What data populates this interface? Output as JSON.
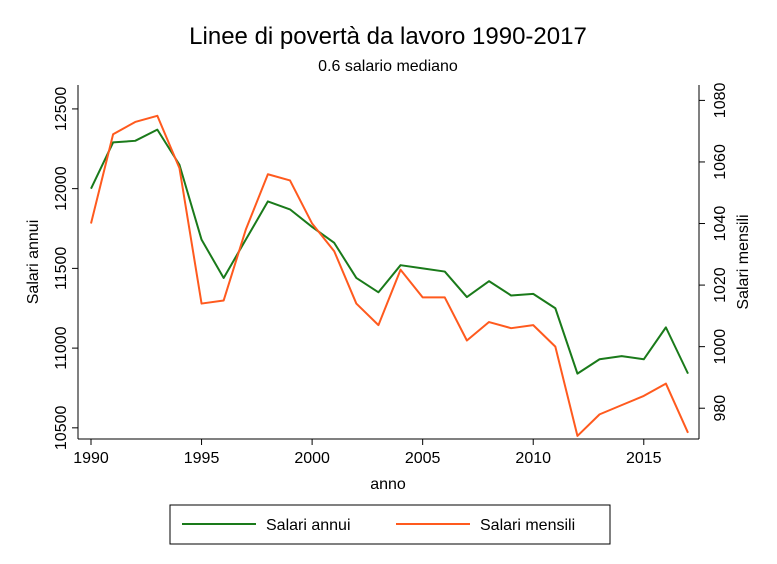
{
  "chart_data": {
    "type": "line",
    "title": "Linee di povertà da lavoro 1990-2017",
    "subtitle": "0.6 salario mediano",
    "xlabel": "anno",
    "ylabel_left": "Salari annui",
    "ylabel_right": "Salari mensili",
    "x": [
      1990,
      1991,
      1992,
      1993,
      1994,
      1995,
      1996,
      1997,
      1998,
      1999,
      2000,
      2001,
      2002,
      2003,
      2004,
      2005,
      2006,
      2007,
      2008,
      2009,
      2010,
      2011,
      2012,
      2013,
      2014,
      2015,
      2016,
      2017
    ],
    "x_ticks": [
      "1990",
      "1995",
      "2000",
      "2005",
      "2010",
      "2015"
    ],
    "xlim": [
      1990,
      2017
    ],
    "y_left_ticks": [
      "10500",
      "11000",
      "11500",
      "12000",
      "12500"
    ],
    "ylim_left": [
      10430,
      12650
    ],
    "y_right_ticks": [
      "980",
      "1000",
      "1020",
      "1040",
      "1060",
      "1080"
    ],
    "ylim_right": [
      970,
      1085
    ],
    "grid": false,
    "legend_position": "bottom",
    "series": [
      {
        "name": "Salari annui",
        "axis": "left",
        "color": "#1a7a1a",
        "values": [
          12000,
          12290,
          12300,
          12370,
          12150,
          11680,
          11440,
          11680,
          11920,
          11870,
          11760,
          11660,
          11440,
          11350,
          11520,
          11500,
          11480,
          11320,
          11420,
          11330,
          11340,
          11250,
          10840,
          10930,
          10950,
          10930,
          11130,
          10840
        ]
      },
      {
        "name": "Salari mensili",
        "axis": "right",
        "color": "#ff5a1e",
        "values": [
          1040,
          1069,
          1073,
          1075,
          1058,
          1014,
          1015,
          1038,
          1056,
          1054,
          1040,
          1031,
          1014,
          1007,
          1025,
          1016,
          1016,
          1002,
          1008,
          1006,
          1007,
          1000,
          971,
          978,
          981,
          984,
          988,
          972
        ]
      }
    ]
  }
}
